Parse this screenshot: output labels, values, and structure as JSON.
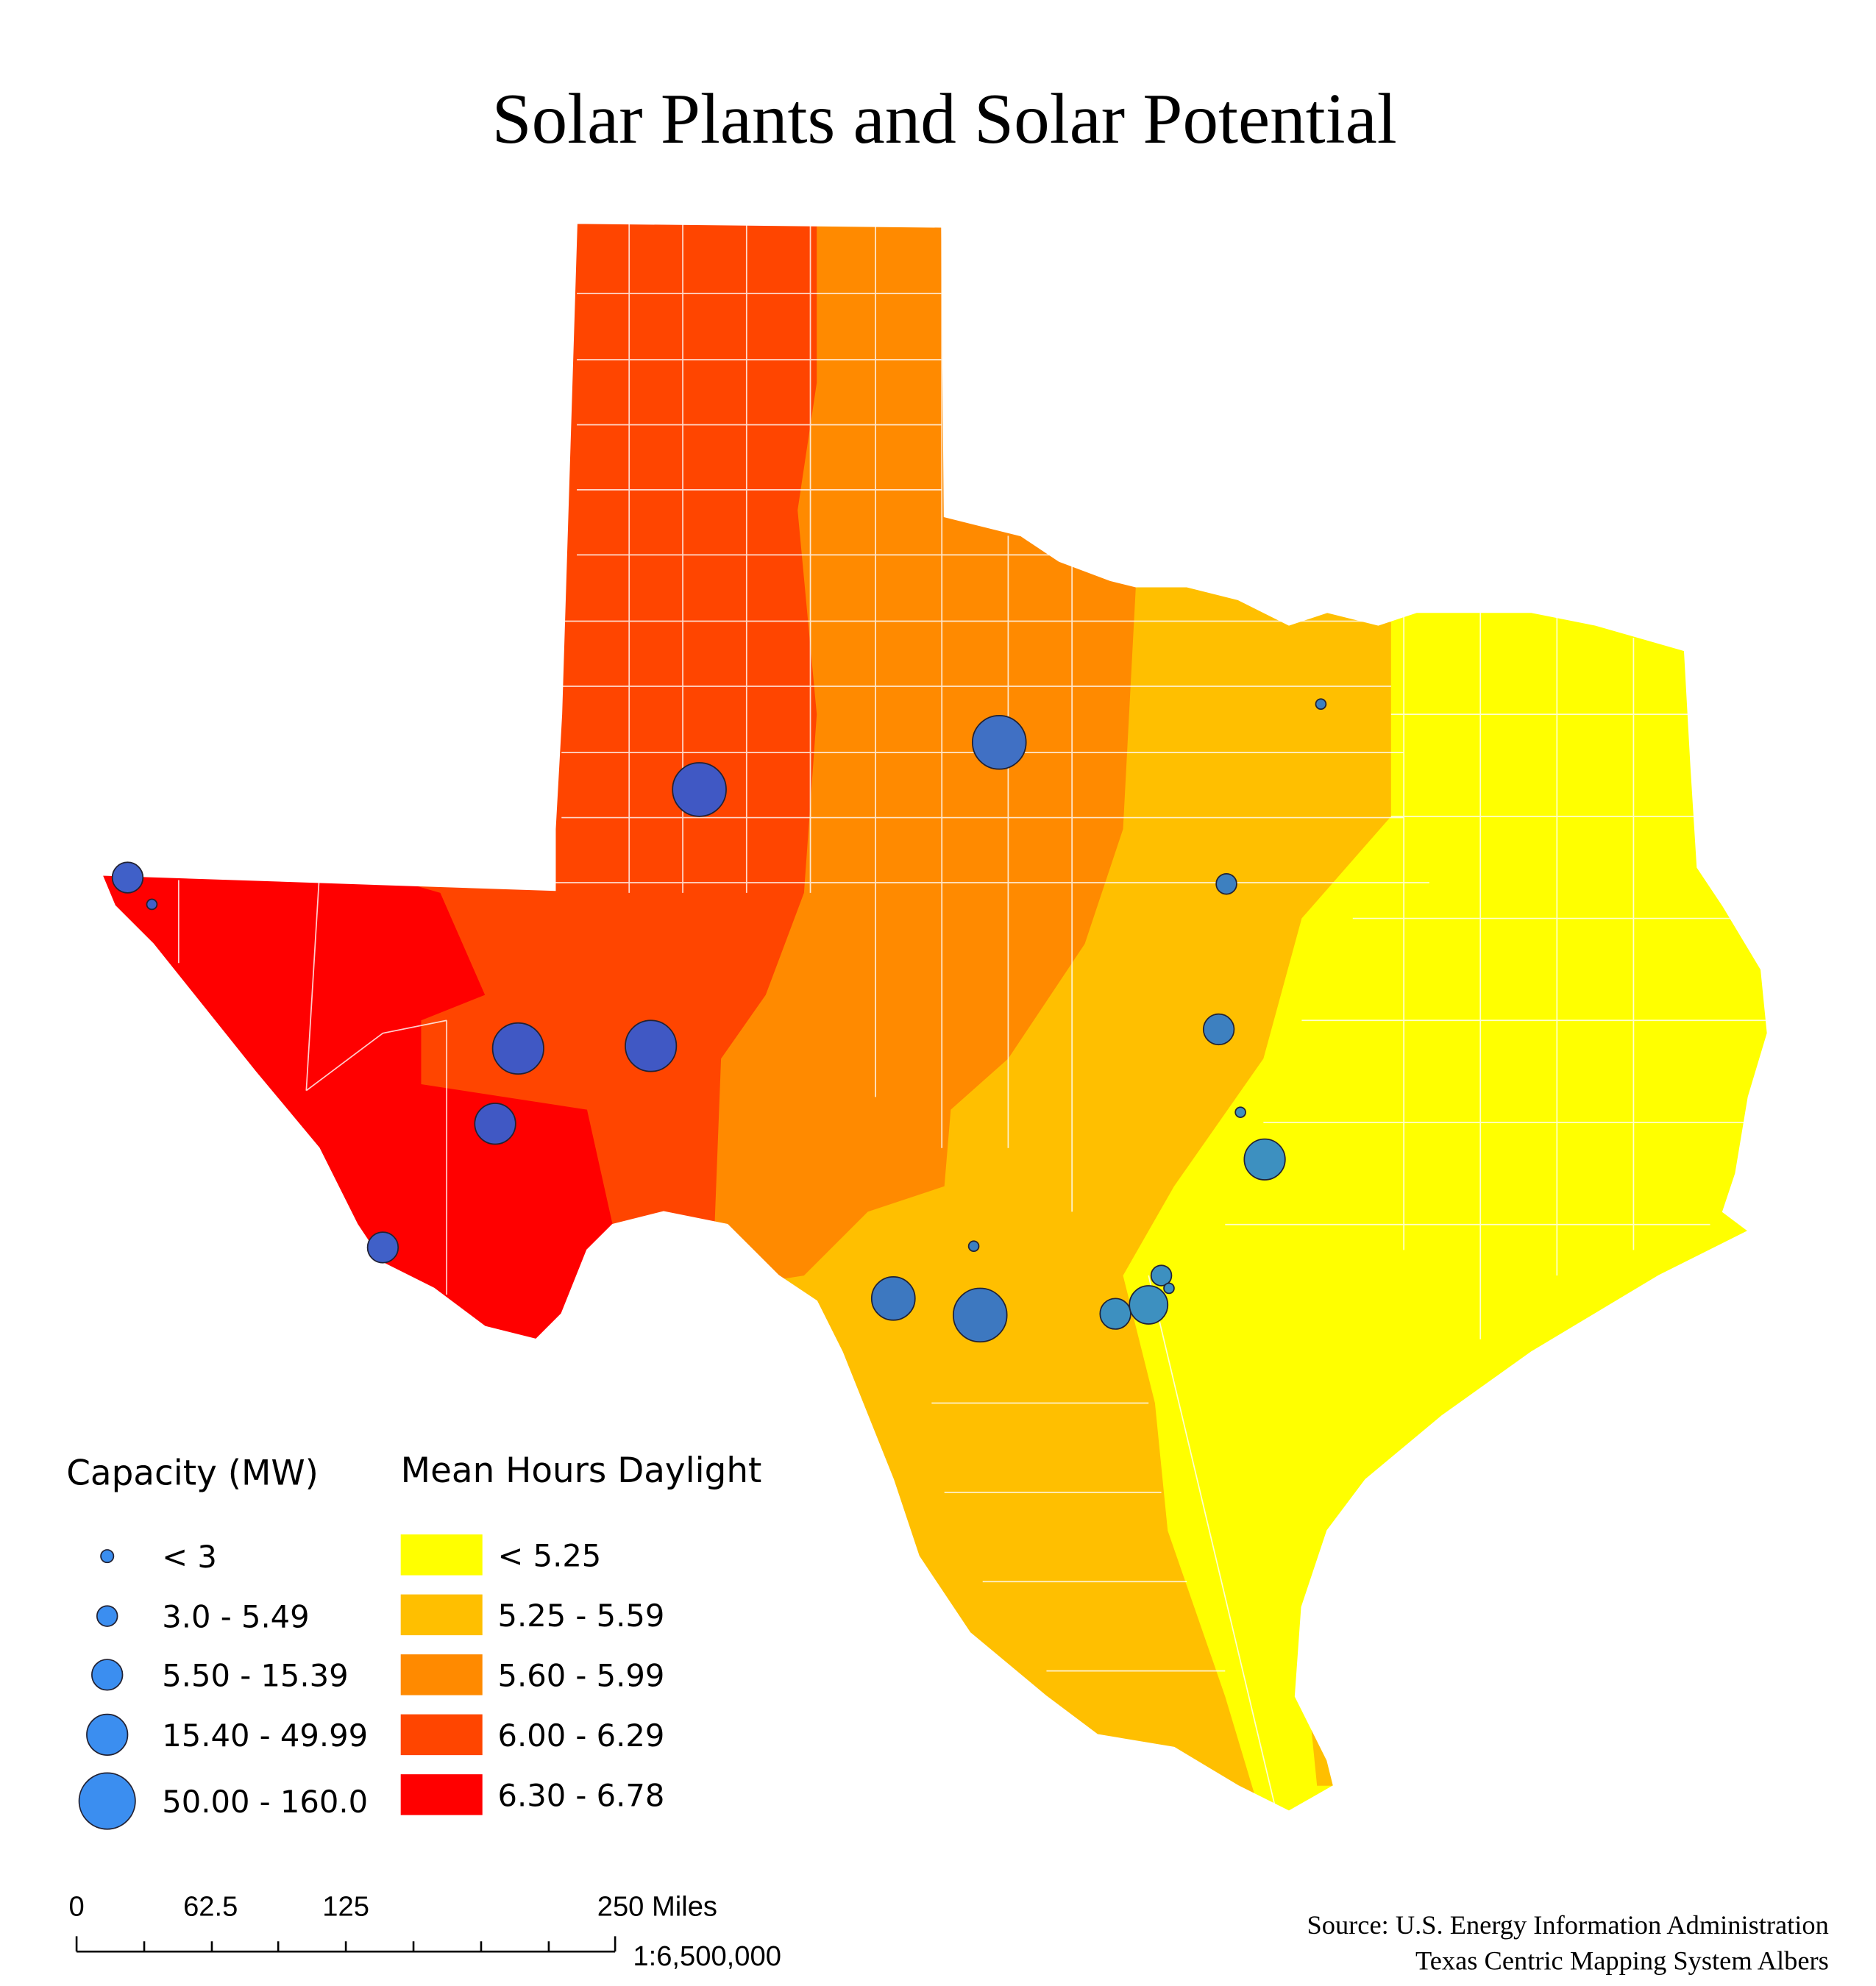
{
  "title": "Solar Plants and Solar Potential",
  "legends": {
    "capacity": {
      "title": "Capacity (MW)",
      "items": [
        "< 3",
        "3.0 - 5.49",
        "5.50 - 15.39",
        "15.40 - 49.99",
        "50.00 - 160.0"
      ]
    },
    "daylight": {
      "title": "Mean Hours Daylight",
      "items": [
        {
          "label": "< 5.25",
          "color": "#ffff00"
        },
        {
          "label": "5.25 - 5.59",
          "color": "#ffbf00"
        },
        {
          "label": "5.60 - 5.99",
          "color": "#ff8a00"
        },
        {
          "label": "6.00 - 6.29",
          "color": "#ff4500"
        },
        {
          "label": "6.30 - 6.78",
          "color": "#ff0000"
        }
      ]
    }
  },
  "scale_bar": {
    "labels": [
      "0",
      "62.5",
      "125",
      "250 Miles"
    ],
    "ratio": "1:6,500,000"
  },
  "source": [
    "Source: U.S. Energy Information Administration",
    "Texas Centric Mapping System Albers"
  ]
}
